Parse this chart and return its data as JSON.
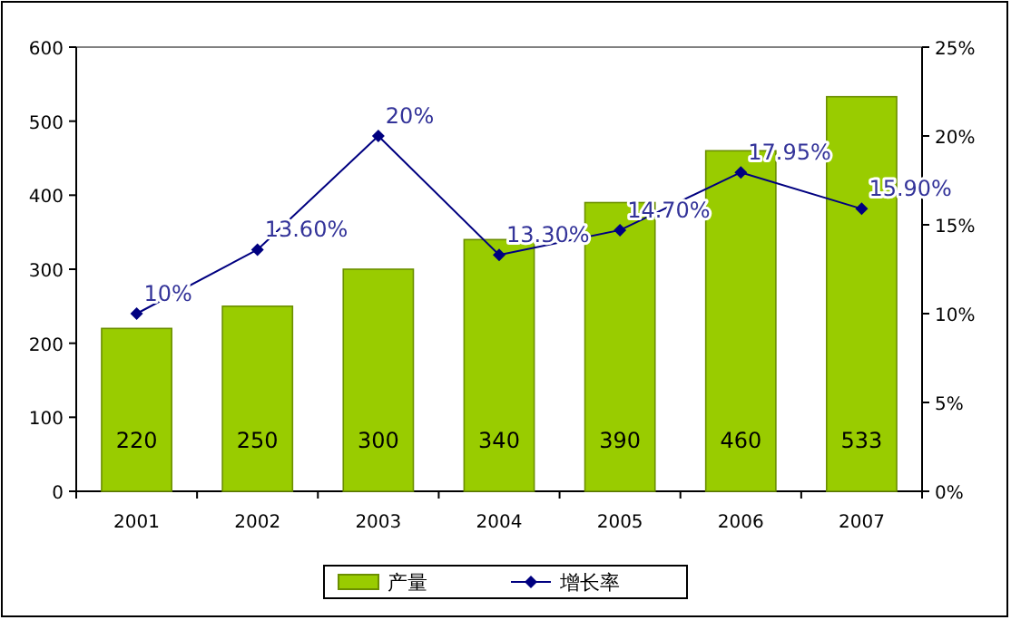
{
  "chart_data": {
    "type": "bar",
    "categories": [
      "2001",
      "2002",
      "2003",
      "2004",
      "2005",
      "2006",
      "2007"
    ],
    "series": [
      {
        "name": "产量",
        "color": "#99cc00",
        "values": [
          220,
          250,
          300,
          340,
          390,
          460,
          533
        ],
        "value_labels": [
          "220",
          "250",
          "300",
          "340",
          "390",
          "460",
          "533"
        ]
      },
      {
        "name": "增长率",
        "type": "line",
        "axis": "y2",
        "color": "#000080",
        "marker": "diamond",
        "values": [
          10,
          13.6,
          20,
          13.3,
          14.7,
          17.95,
          15.9
        ],
        "value_labels": [
          "10%",
          "13.60%",
          "20%",
          "13.30%",
          "14.70%",
          "17.95%",
          "15.90%"
        ]
      }
    ],
    "ylim": [
      0,
      600
    ],
    "yticks": [
      0,
      100,
      200,
      300,
      400,
      500,
      600
    ],
    "y2lim": [
      0,
      25
    ],
    "y2ticks": [
      {
        "value": 0,
        "label": "0%"
      },
      {
        "value": 5,
        "label": "5%"
      },
      {
        "value": 10,
        "label": "10%"
      },
      {
        "value": 15,
        "label": "15%"
      },
      {
        "value": 20,
        "label": "20%"
      },
      {
        "value": 25,
        "label": "25%"
      }
    ],
    "legend": "bottom"
  }
}
